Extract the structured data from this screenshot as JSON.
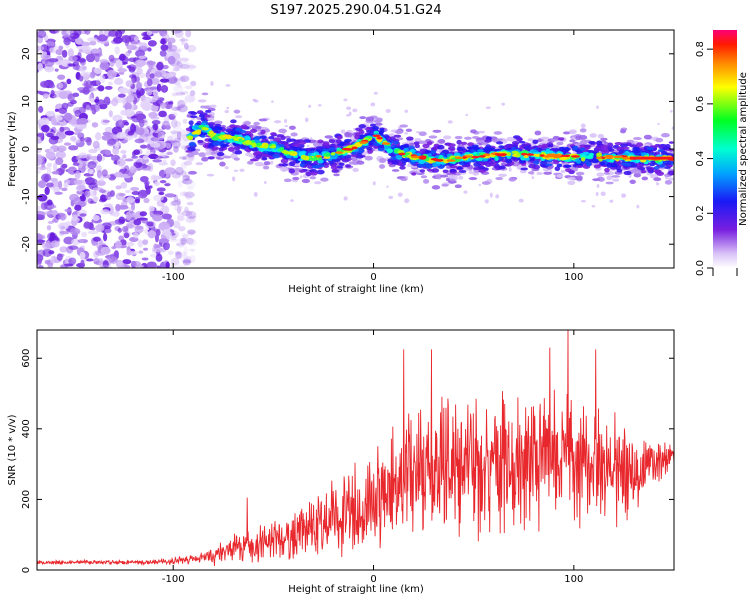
{
  "title": "S197.2025.290.04.51.G24",
  "chart_data": [
    {
      "type": "heatmap",
      "name": "spectrogram",
      "xlabel": "Height of straight line (km)",
      "ylabel": "Frequency (Hz)",
      "xlim": [
        -168,
        150
      ],
      "ylim": [
        -25,
        25
      ],
      "xticks": [
        -100,
        0,
        100
      ],
      "yticks": [
        -20,
        -10,
        0,
        10,
        20
      ],
      "colorbar": {
        "label": "Normalized spectral amplitude",
        "range": [
          0.0,
          0.87
        ],
        "ticks": [
          0.0,
          0.2,
          0.4,
          0.6,
          0.8
        ]
      },
      "ridge": {
        "x": [
          -93,
          -88,
          -85,
          -80,
          -70,
          -60,
          -50,
          -40,
          -30,
          -20,
          -10,
          -5,
          0,
          5,
          10,
          20,
          30,
          40,
          50,
          60,
          70,
          80,
          90,
          100,
          110,
          120,
          130,
          140,
          150
        ],
        "y": [
          2,
          4,
          5,
          2.5,
          2.5,
          1,
          0.5,
          -1,
          -2,
          -1,
          0.2,
          1.5,
          3,
          1.5,
          -0.5,
          -1.5,
          -2.3,
          -2.2,
          -1.5,
          -1.2,
          -1.0,
          -1.2,
          -1.4,
          -1.7,
          -1.6,
          -1.8,
          -1.8,
          -2.0,
          -2.0
        ]
      },
      "noise_region_x": [
        -168,
        -90
      ]
    },
    {
      "type": "line",
      "name": "snr",
      "xlabel": "Height of straight line (km)",
      "ylabel": "SNR (10 * v/v)",
      "xlim": [
        -168,
        150
      ],
      "ylim": [
        0,
        680
      ],
      "xticks": [
        -100,
        0,
        100
      ],
      "yticks": [
        0,
        200,
        400,
        600
      ],
      "color": "#e8282d",
      "envelope": {
        "x": [
          -168,
          -110,
          -90,
          -80,
          -70,
          -60,
          -50,
          -40,
          -30,
          -20,
          -10,
          0,
          10,
          20,
          30,
          40,
          60,
          80,
          90,
          100,
          110,
          120,
          130,
          140,
          150
        ],
        "mean": [
          22,
          22,
          30,
          40,
          60,
          70,
          85,
          95,
          120,
          150,
          170,
          200,
          240,
          290,
          300,
          310,
          300,
          300,
          310,
          300,
          290,
          280,
          290,
          310,
          320
        ],
        "amplitude": [
          6,
          8,
          15,
          30,
          50,
          60,
          70,
          80,
          100,
          120,
          140,
          160,
          180,
          220,
          230,
          240,
          230,
          220,
          230,
          220,
          200,
          180,
          150,
          80,
          40
        ]
      },
      "peaks": [
        {
          "x": -63,
          "y": 205
        },
        {
          "x": 15,
          "y": 625
        },
        {
          "x": 29,
          "y": 625
        },
        {
          "x": 88,
          "y": 630
        },
        {
          "x": 97,
          "y": 680
        },
        {
          "x": 111,
          "y": 625
        }
      ]
    }
  ]
}
